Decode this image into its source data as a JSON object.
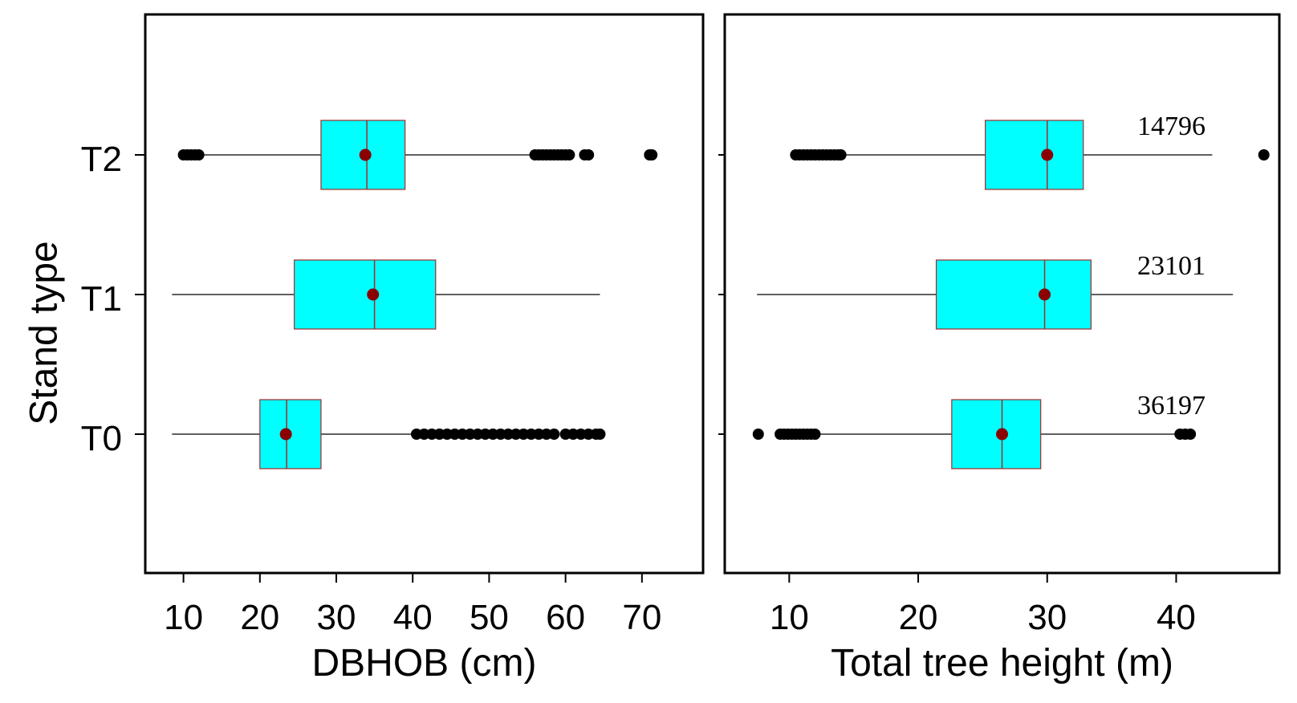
{
  "chart_data": [
    {
      "type": "boxplot",
      "orientation": "horizontal",
      "xlabel": "DBHOB (cm)",
      "ylabel": "Stand type",
      "xlim": [
        5,
        78
      ],
      "xticks": [
        10,
        20,
        30,
        40,
        50,
        60,
        70
      ],
      "xtick_labels": [
        "10",
        "20",
        "30",
        "40",
        "50",
        "60",
        "70"
      ],
      "categories": [
        "T2",
        "T1",
        "T0"
      ],
      "box_color": "#00ffff",
      "box_edge_color": "#a52a2a",
      "mean_color": "#8b0000",
      "outlier_color": "#000000",
      "series": [
        {
          "category": "T2",
          "whisker_low": 12,
          "q1": 28,
          "median": 34,
          "q3": 39,
          "whisker_high": 55.5,
          "mean": 33.8,
          "outliers": [
            10,
            10.5,
            11,
            11.5,
            12,
            56,
            56.5,
            57,
            57.5,
            58,
            58.5,
            59,
            59.5,
            60,
            60.5,
            62.5,
            63,
            71,
            71.3
          ]
        },
        {
          "category": "T1",
          "whisker_low": 8.5,
          "q1": 24.5,
          "median": 35,
          "q3": 43,
          "whisker_high": 64.5,
          "mean": 34.8,
          "outliers": []
        },
        {
          "category": "T0",
          "whisker_low": 8.5,
          "q1": 20,
          "median": 23.5,
          "q3": 28,
          "whisker_high": 40,
          "mean": 23.4,
          "outliers": [
            40.5,
            41.5,
            42.5,
            43.5,
            44.5,
            45.5,
            46.5,
            47.5,
            48.5,
            49.5,
            50.5,
            51.5,
            52.5,
            53.5,
            54.5,
            55.5,
            56.5,
            57.5,
            58.5,
            60,
            61,
            62,
            63,
            64,
            64.5
          ]
        }
      ]
    },
    {
      "type": "boxplot",
      "orientation": "horizontal",
      "xlabel": "Total tree height (m)",
      "xlim": [
        5,
        48
      ],
      "xticks": [
        10,
        20,
        30,
        40
      ],
      "xtick_labels": [
        "10",
        "20",
        "30",
        "40"
      ],
      "categories": [
        "T2",
        "T1",
        "T0"
      ],
      "box_color": "#00ffff",
      "box_edge_color": "#a52a2a",
      "mean_color": "#8b0000",
      "outlier_color": "#000000",
      "series": [
        {
          "category": "T2",
          "whisker_low": 14,
          "q1": 25.2,
          "median": 30,
          "q3": 32.8,
          "whisker_high": 42.8,
          "mean": 30,
          "count": "14796",
          "outliers": [
            10.5,
            10.8,
            11.1,
            11.4,
            11.7,
            12,
            12.3,
            12.6,
            12.9,
            13.2,
            13.5,
            13.8,
            14,
            46.8
          ]
        },
        {
          "category": "T1",
          "whisker_low": 7.5,
          "q1": 21.4,
          "median": 29.8,
          "q3": 33.4,
          "whisker_high": 44.4,
          "mean": 29.8,
          "count": "23101",
          "outliers": []
        },
        {
          "category": "T0",
          "whisker_low": 12.2,
          "q1": 22.6,
          "median": 26.5,
          "q3": 29.5,
          "whisker_high": 40.2,
          "mean": 26.5,
          "count": "36197",
          "outliers": [
            7.6,
            9.3,
            9.6,
            9.9,
            10.2,
            10.5,
            10.8,
            11.1,
            11.4,
            11.7,
            12,
            40.3,
            40.7,
            41.1
          ]
        }
      ]
    }
  ]
}
